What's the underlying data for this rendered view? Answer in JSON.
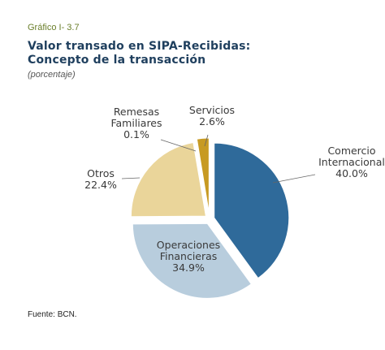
{
  "header": {
    "label": "Gráfico I- 3.7",
    "title_line1": "Valor transado en SIPA-Recibidas:",
    "title_line2": "Concepto de la transacción",
    "unit": "(porcentaje)"
  },
  "source": "Fuente: BCN.",
  "chart_data": {
    "type": "pie",
    "title": "Valor transado en SIPA-Recibidas: Concepto de la transacción",
    "unit": "porcentaje",
    "slices": [
      {
        "name": "Comercio Internacional",
        "lines": [
          "Comercio",
          "Internacional"
        ],
        "value_label": "40.0%",
        "value": 40.0,
        "color": "#2f6a9a"
      },
      {
        "name": "Operaciones Financieras",
        "lines": [
          "Operaciones",
          "Financieras"
        ],
        "value_label": "34.9%",
        "value": 34.9,
        "color": "#b8cddd"
      },
      {
        "name": "Otros",
        "lines": [
          "Otros"
        ],
        "value_label": "22.4%",
        "value": 22.4,
        "color": "#ead59a"
      },
      {
        "name": "Remesas Familiares",
        "lines": [
          "Remesas",
          "Familiares"
        ],
        "value_label": "0.1%",
        "value": 0.1,
        "color": "#d9b243"
      },
      {
        "name": "Servicios",
        "lines": [
          "Servicios"
        ],
        "value_label": "2.6%",
        "value": 2.6,
        "color": "#c79a22"
      }
    ]
  }
}
